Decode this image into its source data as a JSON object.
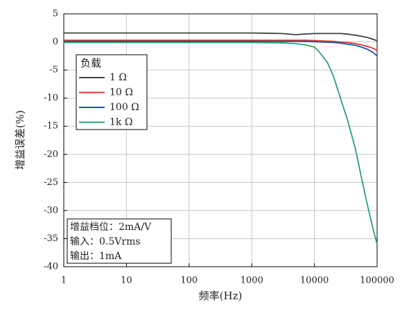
{
  "chart_data": {
    "type": "line",
    "x_label": "频率(Hz)",
    "y_label": "增益误差(%)",
    "x": [
      1,
      10,
      100,
      1000,
      3000,
      5000,
      7000,
      10000,
      12000,
      16000,
      20000,
      26000,
      34000,
      45000,
      56000,
      70000,
      85000,
      100000
    ],
    "series": [
      {
        "name": "1 Ω",
        "color": "#404040",
        "values": [
          1.6,
          1.6,
          1.6,
          1.6,
          1.5,
          1.3,
          1.4,
          1.5,
          1.5,
          1.5,
          1.5,
          1.5,
          1.4,
          1.2,
          1.0,
          0.8,
          0.5,
          0.2
        ]
      },
      {
        "name": "10 Ω",
        "color": "#e03030",
        "values": [
          0.3,
          0.3,
          0.3,
          0.3,
          0.3,
          0.3,
          0.3,
          0.25,
          0.2,
          0.15,
          0.1,
          0,
          -0.1,
          -0.3,
          -0.5,
          -0.8,
          -1.1,
          -1.5
        ]
      },
      {
        "name": "100 Ω",
        "color": "#2050b0",
        "values": [
          0.1,
          0.1,
          0.1,
          0.1,
          0.1,
          0.1,
          0.1,
          0.05,
          0,
          -0.05,
          -0.1,
          -0.2,
          -0.4,
          -0.6,
          -0.9,
          -1.3,
          -1.8,
          -2.5
        ]
      },
      {
        "name": "1k Ω",
        "color": "#2aa070",
        "values": [
          -0.1,
          -0.1,
          -0.1,
          -0.1,
          -0.15,
          -0.3,
          -0.5,
          -0.9,
          -1.8,
          -3.6,
          -6,
          -10,
          -14,
          -19,
          -24,
          -29,
          -33,
          -36
        ]
      }
    ],
    "legend_title": "负载",
    "annotation": [
      "增益档位：2mA/V",
      "输入：0.5Vrms",
      "输出：1mA"
    ],
    "xlim": [
      1,
      100000
    ],
    "xticks": [
      1,
      10,
      100,
      1000,
      10000,
      100000
    ],
    "x_log": true,
    "ylim": [
      -40,
      5
    ],
    "yticks": [
      5,
      0,
      -5,
      -10,
      -15,
      -20,
      -25,
      -30,
      -35,
      -40
    ],
    "grid": true
  }
}
